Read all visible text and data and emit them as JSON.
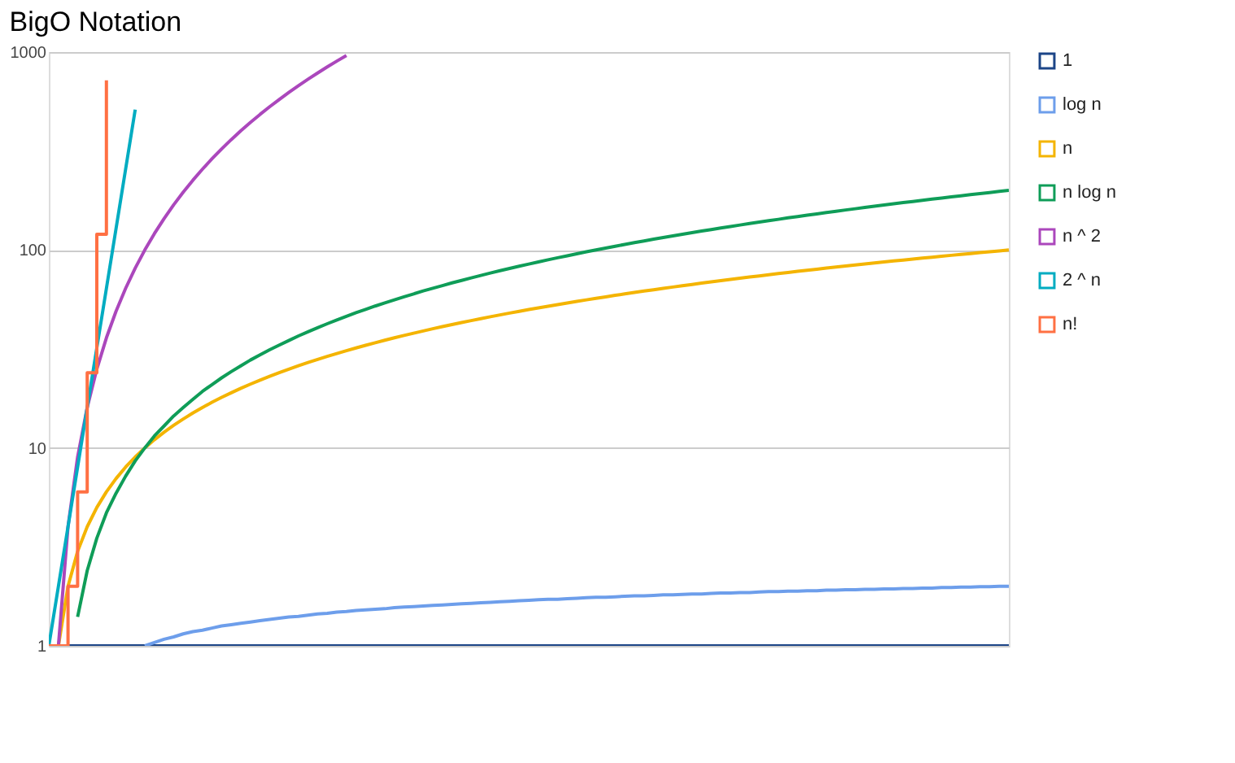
{
  "chart_data": {
    "type": "line",
    "title": "BigO Notation",
    "categories": [
      null,
      null,
      null,
      null,
      null,
      null,
      null,
      null,
      null,
      null,
      null,
      null,
      null,
      null,
      null,
      null,
      null,
      null,
      null,
      null,
      null,
      null,
      null,
      null,
      null,
      null,
      null,
      null,
      null,
      null,
      null,
      null,
      null,
      null,
      null,
      null,
      null,
      null,
      null,
      null,
      null,
      null,
      null,
      null,
      null,
      null,
      null,
      null,
      null,
      null,
      null,
      null,
      null,
      null,
      null,
      null,
      null,
      null,
      null,
      null,
      null,
      null,
      null,
      null,
      null,
      null,
      null,
      null,
      null,
      null,
      null,
      null,
      null,
      null,
      null,
      null,
      null,
      null,
      null,
      null,
      null,
      null,
      null,
      null,
      null,
      null,
      null,
      null,
      null,
      null,
      null,
      null,
      null,
      null,
      null,
      null,
      null,
      null,
      null,
      null,
      null
    ],
    "ylim": [
      1,
      1000
    ],
    "yticks": [
      1,
      10,
      100,
      1000
    ],
    "log": "y",
    "grid": "y",
    "legend": "right",
    "tick_labels": "y",
    "marker": "none",
    "line_style": "solid",
    "series": [
      {
        "name": "1",
        "color": "#1c4587",
        "values": [
          1,
          1,
          1,
          1,
          1,
          1,
          1,
          1,
          1,
          1,
          1,
          1,
          1,
          1,
          1,
          1,
          1,
          1,
          1,
          1,
          1,
          1,
          1,
          1,
          1,
          1,
          1,
          1,
          1,
          1,
          1,
          1,
          1,
          1,
          1,
          1,
          1,
          1,
          1,
          1,
          1,
          1,
          1,
          1,
          1,
          1,
          1,
          1,
          1,
          1,
          1,
          1,
          1,
          1,
          1,
          1,
          1,
          1,
          1,
          1,
          1,
          1,
          1,
          1,
          1,
          1,
          1,
          1,
          1,
          1,
          1,
          1,
          1,
          1,
          1,
          1,
          1,
          1,
          1,
          1,
          1,
          1,
          1,
          1,
          1,
          1,
          1,
          1,
          1,
          1,
          1,
          1,
          1,
          1,
          1,
          1,
          1,
          1,
          1,
          1,
          1
        ]
      },
      {
        "name": "log n",
        "color": "#6d9eeb",
        "values": [
          null,
          null,
          null,
          null,
          null,
          null,
          null,
          null,
          null,
          null,
          1,
          1.04,
          1.08,
          1.11,
          1.15,
          1.18,
          1.2,
          1.23,
          1.26,
          1.28,
          1.3,
          1.32,
          1.34,
          1.36,
          1.38,
          1.4,
          1.41,
          1.43,
          1.45,
          1.46,
          1.48,
          1.49,
          1.51,
          1.52,
          1.53,
          1.54,
          1.56,
          1.57,
          1.58,
          1.59,
          1.6,
          1.61,
          1.62,
          1.63,
          1.64,
          1.65,
          1.66,
          1.67,
          1.68,
          1.69,
          1.7,
          1.71,
          1.72,
          1.72,
          1.73,
          1.74,
          1.75,
          1.76,
          1.76,
          1.77,
          1.78,
          1.79,
          1.79,
          1.8,
          1.81,
          1.81,
          1.82,
          1.83,
          1.83,
          1.84,
          1.85,
          1.85,
          1.86,
          1.86,
          1.87,
          1.88,
          1.88,
          1.89,
          1.89,
          1.9,
          1.9,
          1.91,
          1.91,
          1.92,
          1.92,
          1.93,
          1.93,
          1.94,
          1.94,
          1.95,
          1.95,
          1.96,
          1.96,
          1.97,
          1.97,
          1.98,
          1.98,
          1.99,
          1.99,
          2,
          2
        ]
      },
      {
        "name": "n",
        "color": "#f4b400",
        "values": [
          null,
          1,
          2,
          3,
          4,
          5,
          6,
          7,
          8,
          9,
          10,
          11,
          12,
          13,
          14,
          15,
          16,
          17,
          18,
          19,
          20,
          21,
          22,
          23,
          24,
          25,
          26,
          27,
          28,
          29,
          30,
          31,
          32,
          33,
          34,
          35,
          36,
          37,
          38,
          39,
          40,
          41,
          42,
          43,
          44,
          45,
          46,
          47,
          48,
          49,
          50,
          51,
          52,
          53,
          54,
          55,
          56,
          57,
          58,
          59,
          60,
          61,
          62,
          63,
          64,
          65,
          66,
          67,
          68,
          69,
          70,
          71,
          72,
          73,
          74,
          75,
          76,
          77,
          78,
          79,
          80,
          81,
          82,
          83,
          84,
          85,
          86,
          87,
          88,
          89,
          90,
          91,
          92,
          93,
          94,
          95,
          96,
          97,
          98,
          99,
          100
        ]
      },
      {
        "name": "n log n",
        "color": "#0f9d58",
        "values": [
          null,
          null,
          null,
          1.4,
          2.4,
          3.5,
          4.7,
          5.9,
          7.2,
          8.6,
          10,
          11.5,
          12.9,
          14.5,
          16,
          17.6,
          19.3,
          20.9,
          22.6,
          24.3,
          26,
          27.8,
          29.5,
          31.3,
          33.1,
          34.9,
          36.8,
          38.6,
          40.5,
          42.4,
          44.3,
          46.2,
          48.2,
          50.1,
          52.1,
          54,
          56,
          58,
          60,
          62.1,
          64.1,
          66.1,
          68.2,
          70.2,
          72.3,
          74.4,
          76.5,
          78.6,
          80.7,
          82.8,
          84.9,
          87.1,
          89.2,
          91.4,
          93.5,
          95.7,
          97.9,
          100.1,
          102.3,
          104.5,
          106.7,
          108.9,
          111.1,
          113.4,
          115.6,
          117.8,
          120.1,
          122.3,
          124.6,
          126.9,
          129.2,
          131.4,
          133.7,
          136,
          138.3,
          140.6,
          142.9,
          145.3,
          147.6,
          149.9,
          152.2,
          154.6,
          156.9,
          159.3,
          161.6,
          164,
          166.4,
          168.7,
          171.1,
          173.5,
          175.9,
          178.3,
          180.7,
          183.1,
          185.5,
          187.9,
          190.3,
          192.7,
          195.2,
          197.6,
          200
        ]
      },
      {
        "name": "n ^ 2",
        "color": "#ab47bc",
        "values": [
          null,
          1,
          4,
          9,
          16,
          25,
          36,
          49,
          64,
          81,
          100,
          121,
          144,
          169,
          196,
          225,
          256,
          289,
          324,
          361,
          400,
          441,
          484,
          529,
          576,
          625,
          676,
          729,
          784,
          841,
          900,
          961,
          null,
          null,
          null,
          null,
          null,
          null,
          null,
          null,
          null,
          null,
          null,
          null,
          null,
          null,
          null,
          null,
          null,
          null,
          null,
          null,
          null,
          null,
          null,
          null,
          null,
          null,
          null,
          null,
          null,
          null,
          null,
          null,
          null,
          null,
          null,
          null,
          null,
          null,
          null,
          null,
          null,
          null,
          null,
          null,
          null,
          null,
          null,
          null,
          null,
          null,
          null,
          null,
          null,
          null,
          null,
          null,
          null,
          null,
          null,
          null,
          null,
          null,
          null,
          null,
          null,
          null,
          null,
          null,
          null
        ]
      },
      {
        "name": "2 ^ n",
        "color": "#00acc1",
        "values": [
          1,
          2,
          4,
          8,
          16,
          32,
          64,
          128,
          256,
          512,
          null,
          null,
          null,
          null,
          null,
          null,
          null,
          null,
          null,
          null,
          null,
          null,
          null,
          null,
          null,
          null,
          null,
          null,
          null,
          null,
          null,
          null,
          null,
          null,
          null,
          null,
          null,
          null,
          null,
          null,
          null,
          null,
          null,
          null,
          null,
          null,
          null,
          null,
          null,
          null,
          null,
          null,
          null,
          null,
          null,
          null,
          null,
          null,
          null,
          null,
          null,
          null,
          null,
          null,
          null,
          null,
          null,
          null,
          null,
          null,
          null,
          null,
          null,
          null,
          null,
          null,
          null,
          null,
          null,
          null,
          null,
          null,
          null,
          null,
          null,
          null,
          null,
          null,
          null,
          null,
          null,
          null,
          null,
          null,
          null,
          null,
          null,
          null,
          null,
          null,
          null
        ]
      },
      {
        "name": "n!",
        "color": "#ff7043",
        "type": "step",
        "values": [
          1,
          1,
          2,
          6,
          24,
          120,
          720,
          null,
          null,
          null,
          null,
          null,
          null,
          null,
          null,
          null,
          null,
          null,
          null,
          null,
          null,
          null,
          null,
          null,
          null,
          null,
          null,
          null,
          null,
          null,
          null,
          null,
          null,
          null,
          null,
          null,
          null,
          null,
          null,
          null,
          null,
          null,
          null,
          null,
          null,
          null,
          null,
          null,
          null,
          null,
          null,
          null,
          null,
          null,
          null,
          null,
          null,
          null,
          null,
          null,
          null,
          null,
          null,
          null,
          null,
          null,
          null,
          null,
          null,
          null,
          null,
          null,
          null,
          null,
          null,
          null,
          null,
          null,
          null,
          null,
          null,
          null,
          null,
          null,
          null,
          null,
          null,
          null,
          null,
          null,
          null,
          null,
          null,
          null,
          null,
          null,
          null,
          null,
          null,
          null,
          null
        ]
      }
    ]
  }
}
